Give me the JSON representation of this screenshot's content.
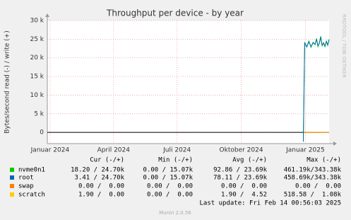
{
  "chart_data": {
    "type": "line",
    "title": "Throughput per device - by year",
    "ylabel": "Bytes/second read (-) / write (+)",
    "side_label": "RRDTOOL / TOBI OETIKER",
    "x": [
      "2024-12-29",
      "2024-12-31",
      "2025-01-03",
      "2025-01-06",
      "2025-01-09",
      "2025-01-12",
      "2025-01-15",
      "2025-01-17",
      "2025-01-19",
      "2025-01-21",
      "2025-01-23",
      "2025-01-25",
      "2025-01-27",
      "2025-01-29",
      "2025-01-31",
      "2025-02-02",
      "2025-02-04"
    ],
    "series": [
      {
        "name": "nvme0n1",
        "color": "#00cc00",
        "values": [
          -2500,
          24000,
          23000,
          24500,
          22800,
          24200,
          23500,
          25200,
          23000,
          24000,
          25800,
          23200,
          24100,
          23000,
          24500,
          23300,
          25000
        ]
      },
      {
        "name": "root",
        "color": "#0066b3",
        "values": [
          -2400,
          24100,
          22900,
          24300,
          23000,
          24000,
          23700,
          25000,
          23200,
          23900,
          25500,
          23400,
          23900,
          23100,
          24300,
          23500,
          24800
        ]
      },
      {
        "name": "swap",
        "color": "#ff8000",
        "values": [
          0,
          0,
          0,
          0,
          0,
          0,
          0,
          0,
          0,
          0,
          0,
          0,
          0,
          0,
          0,
          0,
          0
        ]
      },
      {
        "name": "scratch",
        "color": "#ffcc00",
        "values": [
          0,
          0,
          0,
          0,
          0,
          0,
          0,
          0,
          0,
          0,
          0,
          0,
          0,
          0,
          0,
          0,
          0
        ]
      }
    ],
    "xlim": [
      "2023-12-28",
      "2025-02-04"
    ],
    "xticks": [
      {
        "value": "2024-01-01",
        "label": "Januar 2024"
      },
      {
        "value": "2024-04-01",
        "label": "April 2024"
      },
      {
        "value": "2024-07-01",
        "label": "Juli 2024"
      },
      {
        "value": "2024-10-01",
        "label": "Oktober 2024"
      },
      {
        "value": "2025-01-01",
        "label": "Januar 2025"
      }
    ],
    "ylim": [
      -3000,
      30000
    ],
    "yticks": [
      0,
      {
        "value": 5000,
        "label": "5 k"
      },
      {
        "value": 10000,
        "label": "10 k"
      },
      {
        "value": 15000,
        "label": "15 k"
      },
      {
        "value": 20000,
        "label": "20 k"
      },
      {
        "value": 25000,
        "label": "25 k"
      },
      {
        "value": 30000,
        "label": "30 k"
      }
    ],
    "grid": true,
    "legend_table": {
      "columns": [
        "Cur (-/+)",
        "Min (-/+)",
        "Avg (-/+)",
        "Max (-/+)"
      ],
      "rows": [
        [
          "18.20 / 24.70k",
          "0.00 / 15.07k",
          "92.86 / 23.69k",
          "461.19k/343.38k"
        ],
        [
          "3.41 / 24.70k",
          "0.00 / 15.07k",
          "78.11 / 23.69k",
          "458.69k/343.38k"
        ],
        [
          "0.00 /  0.00",
          "0.00 /  0.00",
          "0.00 /  0.00",
          "0.00 /  0.00"
        ],
        [
          "1.90 /  0.00",
          "0.00 /  0.00",
          "1.90 /  4.52",
          "518.58 /  1.08k"
        ]
      ]
    },
    "last_update": "Last update: Fri Feb 14 00:56:03 2025",
    "footer": "Munin 2.0.56"
  }
}
